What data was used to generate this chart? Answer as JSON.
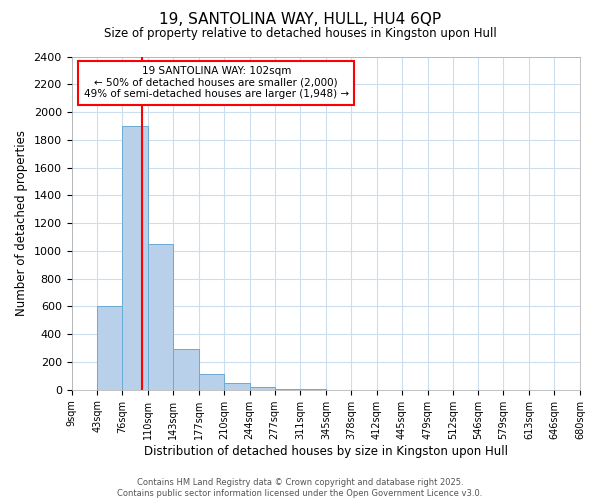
{
  "title": "19, SANTOLINA WAY, HULL, HU4 6QP",
  "subtitle": "Size of property relative to detached houses in Kingston upon Hull",
  "xlabel": "Distribution of detached houses by size in Kingston upon Hull",
  "ylabel": "Number of detached properties",
  "bin_labels": [
    "9sqm",
    "43sqm",
    "76sqm",
    "110sqm",
    "143sqm",
    "177sqm",
    "210sqm",
    "244sqm",
    "277sqm",
    "311sqm",
    "345sqm",
    "378sqm",
    "412sqm",
    "445sqm",
    "479sqm",
    "512sqm",
    "546sqm",
    "579sqm",
    "613sqm",
    "646sqm",
    "680sqm"
  ],
  "bin_edges": [
    9,
    43,
    76,
    110,
    143,
    177,
    210,
    244,
    277,
    311,
    345,
    378,
    412,
    445,
    479,
    512,
    546,
    579,
    613,
    646,
    680
  ],
  "bar_values": [
    0,
    600,
    1900,
    1050,
    290,
    110,
    45,
    20,
    5,
    2,
    1,
    0,
    0,
    0,
    0,
    0,
    0,
    0,
    0,
    0
  ],
  "bar_color": "#b8d0ea",
  "bar_edgecolor": "#6aaad4",
  "red_line_x": 102,
  "annotation_title": "19 SANTOLINA WAY: 102sqm",
  "annotation_line1": "← 50% of detached houses are smaller (2,000)",
  "annotation_line2": "49% of semi-detached houses are larger (1,948) →",
  "ylim": [
    0,
    2400
  ],
  "yticks": [
    0,
    200,
    400,
    600,
    800,
    1000,
    1200,
    1400,
    1600,
    1800,
    2000,
    2200,
    2400
  ],
  "footer_line1": "Contains HM Land Registry data © Crown copyright and database right 2025.",
  "footer_line2": "Contains public sector information licensed under the Open Government Licence v3.0.",
  "bg_color": "#ffffff",
  "plot_bg_color": "#ffffff",
  "grid_color": "#ccddee"
}
